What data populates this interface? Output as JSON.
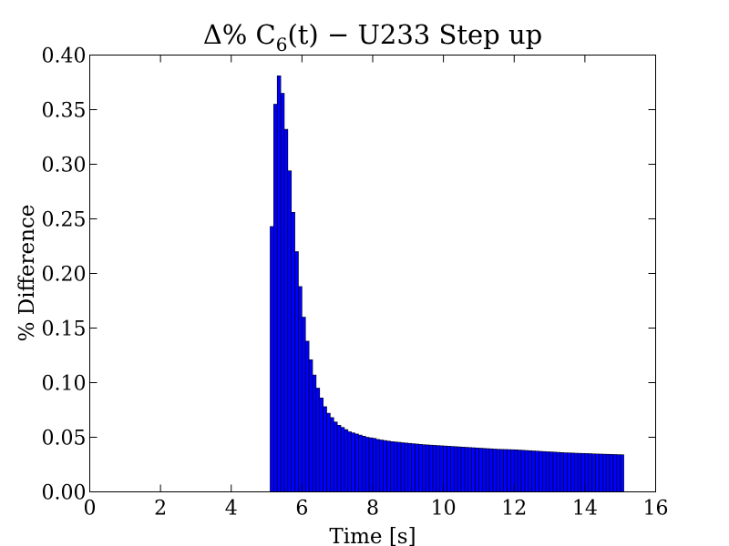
{
  "chart_data": {
    "type": "bar",
    "title": {
      "prefix": "Δ% C",
      "sub": "6",
      "suffix": "(t) − U233 Step up"
    },
    "xlabel": "Time [s]",
    "ylabel": "% Difference",
    "xlim": [
      0,
      16
    ],
    "ylim": [
      0,
      0.4
    ],
    "xticks": [
      "0",
      "2",
      "4",
      "6",
      "8",
      "10",
      "12",
      "14",
      "16"
    ],
    "yticks": [
      "0.00",
      "0.05",
      "0.10",
      "0.15",
      "0.20",
      "0.25",
      "0.30",
      "0.35",
      "0.40"
    ],
    "grid": false,
    "bar_width": 0.1,
    "bar_color": "#0000ff",
    "bar_edge_color": "#000000",
    "bar_x_start": 5.1,
    "values": [
      0.243,
      0.355,
      0.381,
      0.365,
      0.332,
      0.294,
      0.256,
      0.22,
      0.188,
      0.16,
      0.138,
      0.121,
      0.107,
      0.095,
      0.086,
      0.078,
      0.072,
      0.068,
      0.064,
      0.061,
      0.059,
      0.057,
      0.055,
      0.054,
      0.053,
      0.052,
      0.051,
      0.05,
      0.0495,
      0.049,
      0.048,
      0.0475,
      0.047,
      0.0465,
      0.046,
      0.0457,
      0.0454,
      0.045,
      0.0447,
      0.0444,
      0.0441,
      0.0438,
      0.0435,
      0.0432,
      0.043,
      0.0428,
      0.0426,
      0.0424,
      0.0422,
      0.042,
      0.0418,
      0.0416,
      0.0414,
      0.0412,
      0.041,
      0.0408,
      0.0406,
      0.0404,
      0.0402,
      0.04,
      0.0398,
      0.0396,
      0.0394,
      0.0392,
      0.039,
      0.0389,
      0.0388,
      0.0387,
      0.0386,
      0.0385,
      0.0383,
      0.0381,
      0.0379,
      0.0377,
      0.0375,
      0.0373,
      0.0371,
      0.0369,
      0.0367,
      0.0366,
      0.0364,
      0.0362,
      0.036,
      0.0358,
      0.0357,
      0.0356,
      0.0354,
      0.0353,
      0.0352,
      0.0351,
      0.035,
      0.0348,
      0.0347,
      0.0346,
      0.0345,
      0.0344,
      0.0343,
      0.0342,
      0.0341,
      0.034
    ]
  }
}
